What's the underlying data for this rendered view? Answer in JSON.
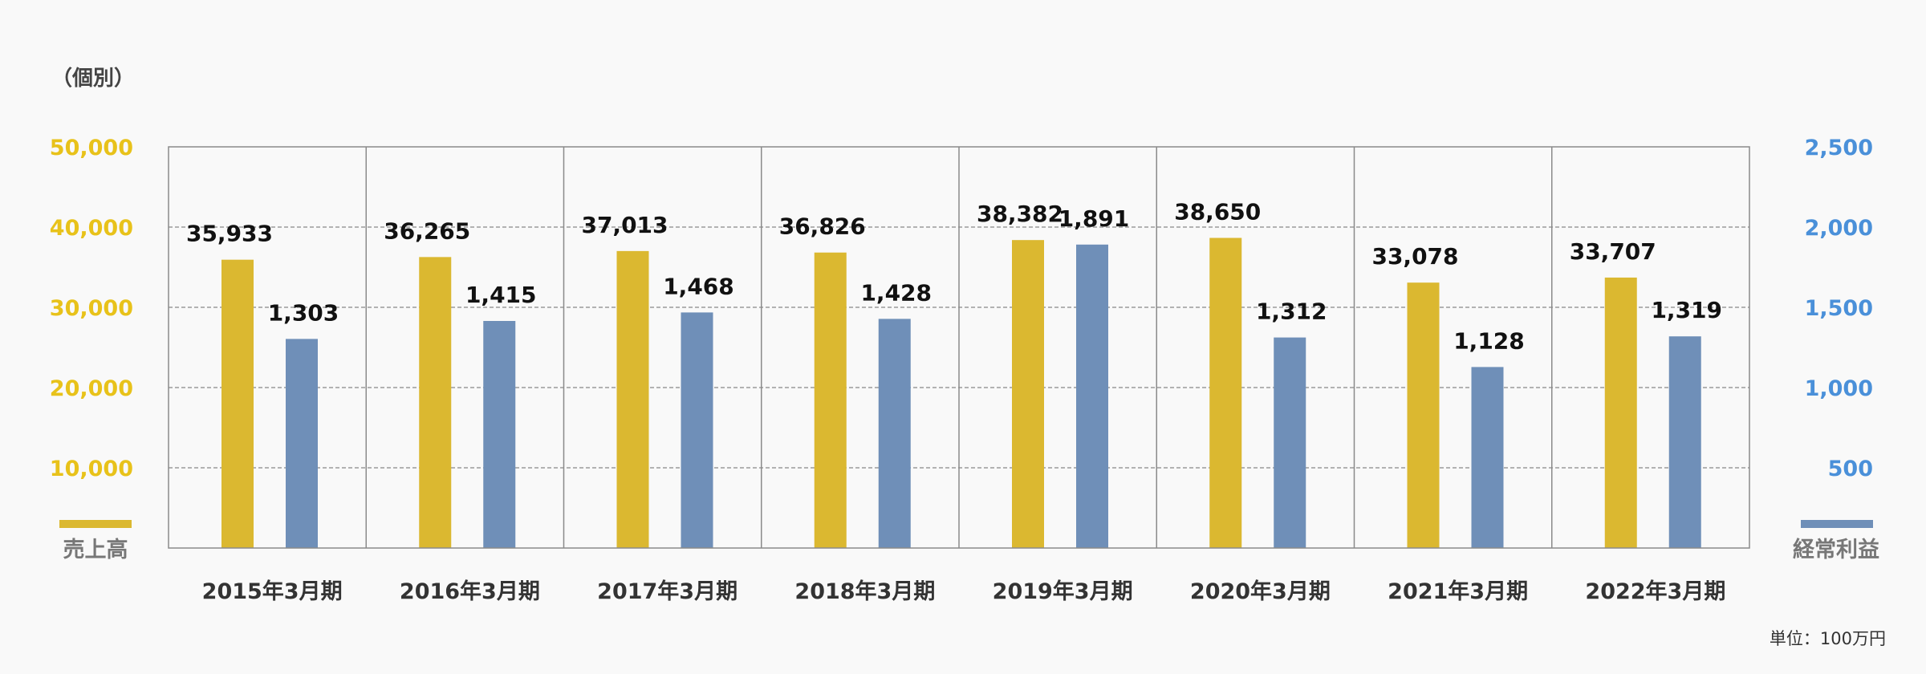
{
  "chart_data": {
    "type": "bar",
    "scope_label": "（個別）",
    "unit_label": "単位：100万円",
    "categories": [
      "2015年3月期",
      "2016年3月期",
      "2017年3月期",
      "2018年3月期",
      "2019年3月期",
      "2020年3月期",
      "2021年3月期",
      "2022年3月期"
    ],
    "series": [
      {
        "name": "売上高",
        "axis": "left",
        "color": "#dbb830",
        "values": [
          35933,
          36265,
          37013,
          36826,
          38382,
          38650,
          33078,
          33707
        ],
        "labels": [
          "35,933",
          "36,265",
          "37,013",
          "36,826",
          "38,382",
          "38,650",
          "33,078",
          "33,707"
        ]
      },
      {
        "name": "経常利益",
        "axis": "right",
        "color": "#6f8fb8",
        "values": [
          1303,
          1415,
          1468,
          1428,
          1891,
          1312,
          1128,
          1319
        ],
        "labels": [
          "1,303",
          "1,415",
          "1,468",
          "1,428",
          "1,891",
          "1,312",
          "1,128",
          "1,319"
        ]
      }
    ],
    "y_left": {
      "ylim": [
        0,
        50000
      ],
      "ticks": [
        "10,000",
        "20,000",
        "30,000",
        "40,000",
        "50,000"
      ],
      "color": "#e8c21a"
    },
    "y_right": {
      "ylim": [
        0,
        2500
      ],
      "ticks": [
        "500",
        "1,000",
        "1,500",
        "2,000",
        "2,500"
      ],
      "color": "#4a90d9"
    },
    "grid": "dashed-horizontal"
  }
}
